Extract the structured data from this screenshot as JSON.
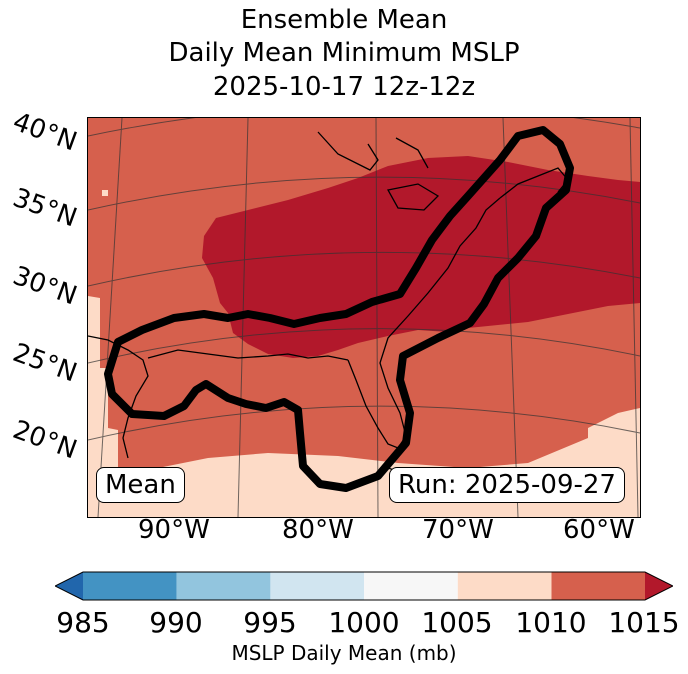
{
  "title": {
    "line1": "Ensemble Mean",
    "line2": "Daily Mean Minimum MSLP",
    "line3": "2025-10-17 12z-12z"
  },
  "map": {
    "lat_labels": [
      "40°N",
      "35°N",
      "30°N",
      "25°N",
      "20°N"
    ],
    "lon_labels": [
      "90°W",
      "80°W",
      "70°W",
      "60°W"
    ],
    "box_left": "Mean",
    "box_right": "Run: 2025-09-27",
    "fill_colors": {
      "1010-1015": "#d6604d",
      "1015+": "#b2182b",
      "1005-1010": "#fddbc7"
    },
    "contour_color": "#000000"
  },
  "colorbar": {
    "ticks": [
      "985",
      "990",
      "995",
      "1000",
      "1005",
      "1010",
      "1015"
    ],
    "bins": [
      {
        "range": "<985",
        "color": "#2166ac"
      },
      {
        "range": "985-990",
        "color": "#4393c3"
      },
      {
        "range": "990-995",
        "color": "#92c5de"
      },
      {
        "range": "995-1000",
        "color": "#d1e5f0"
      },
      {
        "range": "1000-1005",
        "color": "#f7f7f7"
      },
      {
        "range": "1005-1010",
        "color": "#fddbc7"
      },
      {
        "range": "1010-1015",
        "color": "#d6604d"
      },
      {
        "range": ">1015",
        "color": "#b2182b"
      }
    ],
    "label": "MSLP Daily Mean (mb)"
  }
}
